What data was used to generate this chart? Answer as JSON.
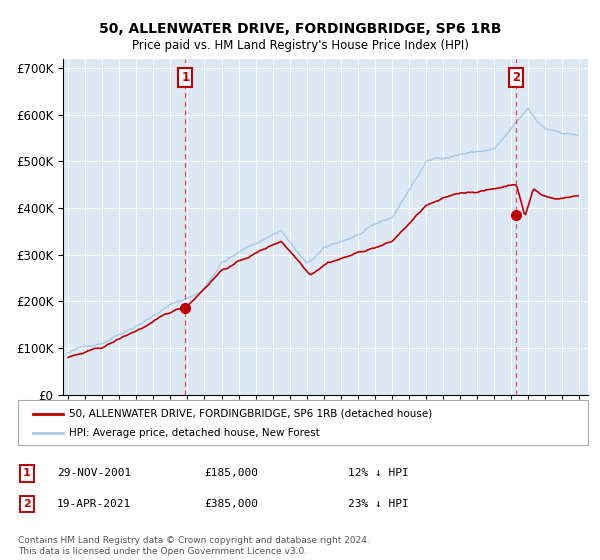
{
  "title": "50, ALLENWATER DRIVE, FORDINGBRIDGE, SP6 1RB",
  "subtitle": "Price paid vs. HM Land Registry's House Price Index (HPI)",
  "legend_label_red": "50, ALLENWATER DRIVE, FORDINGBRIDGE, SP6 1RB (detached house)",
  "legend_label_blue": "HPI: Average price, detached house, New Forest",
  "transaction1_date": "29-NOV-2001",
  "transaction1_price": 185000,
  "transaction1_label": "12% ↓ HPI",
  "transaction2_date": "19-APR-2021",
  "transaction2_price": 385000,
  "transaction2_label": "23% ↓ HPI",
  "footnote": "Contains HM Land Registry data © Crown copyright and database right 2024.\nThis data is licensed under the Open Government Licence v3.0.",
  "start_year": 1995,
  "end_year": 2025,
  "ylim_max": 720000,
  "hpi_color": "#a8c8e8",
  "price_color": "#c00000",
  "vline_color": "#e05050",
  "marker_color": "#c00000",
  "background_color": "#dce9f5",
  "grid_color": "#ffffff",
  "fig_bg": "#f0f0f0",
  "annotation_box_color": "#c00000"
}
